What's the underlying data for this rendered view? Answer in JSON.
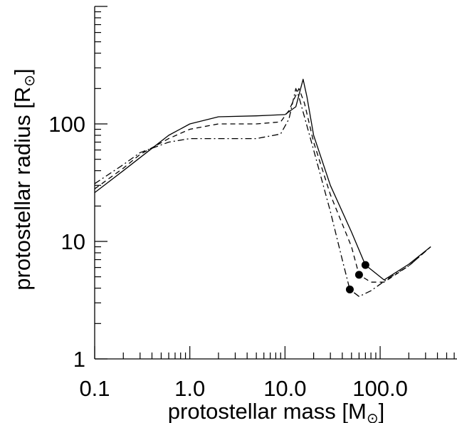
{
  "chart_data": {
    "type": "line",
    "xscale": "log",
    "yscale": "log",
    "xlim": [
      0.1,
      642
    ],
    "ylim": [
      1,
      1000
    ],
    "x_ticks": [
      {
        "value": 0.1,
        "label": "0.1"
      },
      {
        "value": 1.0,
        "label": "1.0"
      },
      {
        "value": 10.0,
        "label": "10.0"
      },
      {
        "value": 100.0,
        "label": "100.0"
      }
    ],
    "y_ticks": [
      {
        "value": 1,
        "label": "1"
      },
      {
        "value": 10,
        "label": "10"
      },
      {
        "value": 100,
        "label": "100"
      }
    ],
    "xlabel": {
      "text": "protostellar mass [M",
      "sub": "⊙",
      "close": "]"
    },
    "ylabel": {
      "text": "protostellar radius [R",
      "sub": "⊙",
      "close": "]"
    },
    "grid": false,
    "series": [
      {
        "style": "solid",
        "points": [
          [
            0.1,
            26
          ],
          [
            0.2,
            40
          ],
          [
            0.4,
            62
          ],
          [
            0.6,
            80
          ],
          [
            1.0,
            100
          ],
          [
            2.0,
            115
          ],
          [
            5.0,
            117
          ],
          [
            10.0,
            120
          ],
          [
            13.0,
            140
          ],
          [
            15.5,
            240
          ],
          [
            17.0,
            170
          ],
          [
            20.0,
            80
          ],
          [
            30.0,
            30
          ],
          [
            50.0,
            12
          ],
          [
            70.0,
            6.3
          ],
          [
            110.0,
            4.7
          ],
          [
            200.0,
            6.4
          ],
          [
            340.0,
            9.0
          ]
        ],
        "end_marker": [
          70.0,
          6.3
        ]
      },
      {
        "style": "dashed",
        "points": [
          [
            0.1,
            28
          ],
          [
            0.2,
            42
          ],
          [
            0.3,
            55
          ],
          [
            0.6,
            75
          ],
          [
            1.0,
            90
          ],
          [
            2.0,
            100
          ],
          [
            5.0,
            100
          ],
          [
            9.0,
            104
          ],
          [
            11.0,
            130
          ],
          [
            14.0,
            200
          ],
          [
            16.0,
            150
          ],
          [
            20.0,
            70
          ],
          [
            30.0,
            25
          ],
          [
            50.0,
            9
          ],
          [
            60.0,
            5.2
          ],
          [
            80.0,
            4.5
          ],
          [
            110.0,
            4.5
          ],
          [
            200.0,
            6.2
          ],
          [
            340.0,
            9.0
          ]
        ],
        "end_marker": [
          60.0,
          5.2
        ]
      },
      {
        "style": "dashdot",
        "points": [
          [
            0.1,
            31
          ],
          [
            0.2,
            45
          ],
          [
            0.3,
            57
          ],
          [
            0.6,
            70
          ],
          [
            1.0,
            75
          ],
          [
            2.0,
            75
          ],
          [
            5.0,
            75
          ],
          [
            9.0,
            82
          ],
          [
            11.0,
            110
          ],
          [
            13.0,
            200
          ],
          [
            14.0,
            170
          ],
          [
            20.0,
            60
          ],
          [
            30.0,
            18
          ],
          [
            40.0,
            7
          ],
          [
            48.0,
            3.9
          ],
          [
            60.0,
            3.4
          ],
          [
            80.0,
            3.8
          ],
          [
            120.0,
            4.8
          ],
          [
            200.0,
            6.2
          ],
          [
            340.0,
            9.0
          ]
        ],
        "end_marker": [
          48.0,
          3.9
        ]
      }
    ]
  }
}
